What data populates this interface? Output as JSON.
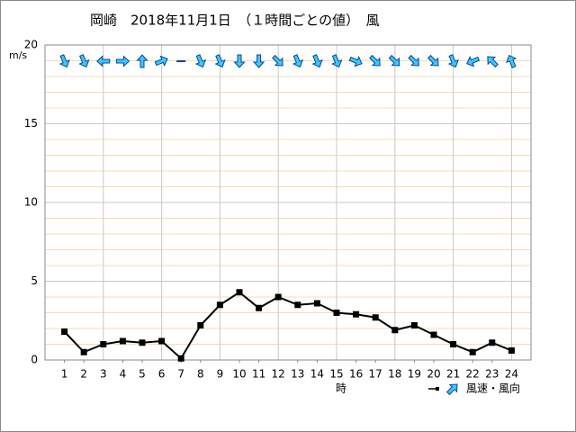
{
  "chart_data": {
    "type": "line",
    "title": "岡崎　2018年11月1日　（１時間ごとの値）　風",
    "y_label": "m/s",
    "x_label": "時",
    "x": [
      1,
      2,
      3,
      4,
      5,
      6,
      7,
      8,
      9,
      10,
      11,
      12,
      13,
      14,
      15,
      16,
      17,
      18,
      19,
      20,
      21,
      22,
      23,
      24
    ],
    "xlim": [
      0,
      25
    ],
    "xticks": [
      1,
      2,
      3,
      4,
      5,
      6,
      7,
      8,
      9,
      10,
      11,
      12,
      13,
      14,
      15,
      16,
      17,
      18,
      19,
      20,
      21,
      22,
      23,
      24
    ],
    "ylim": [
      0,
      20
    ],
    "yticks": [
      0,
      5,
      10,
      15,
      20
    ],
    "grid": true,
    "series": [
      {
        "name": "風速・風向",
        "color": "#000000",
        "arrow_color": "#33ccff",
        "values": [
          1.8,
          0.5,
          1.0,
          1.2,
          1.1,
          1.2,
          0.1,
          2.2,
          3.5,
          4.3,
          3.3,
          4.0,
          3.5,
          3.6,
          3.0,
          2.9,
          2.7,
          1.9,
          2.2,
          1.6,
          1.0,
          0.5,
          1.1,
          0.6
        ],
        "directions": [
          337.5,
          337.5,
          90,
          270,
          180,
          247.5,
          null,
          337.5,
          337.5,
          0,
          0,
          315,
          337.5,
          337.5,
          337.5,
          292.5,
          315,
          315,
          315,
          315,
          337.5,
          67.5,
          135,
          157.5
        ]
      }
    ]
  }
}
